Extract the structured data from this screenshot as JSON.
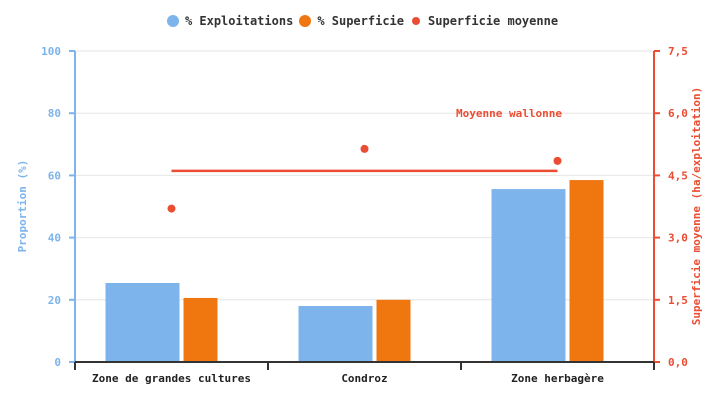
{
  "legend": [
    {
      "label": "% Exploitations",
      "color": "#7db4ec",
      "shape": "circle-large"
    },
    {
      "label": "% Superficie",
      "color": "#f0760f",
      "shape": "circle-large"
    },
    {
      "label": "Superficie moyenne",
      "color": "#eb4d32",
      "shape": "circle-small"
    }
  ],
  "annotation": {
    "label": "Moyenne wallonne",
    "color": "#eb4d32"
  },
  "chart_data": {
    "type": "bar",
    "title": "",
    "categories": [
      "Zone de grandes cultures",
      "Condroz",
      "Zone herbagère"
    ],
    "series": [
      {
        "name": "% Exploitations",
        "axis": "left",
        "type": "bar",
        "color": "#7db4ec",
        "values": [
          25.4,
          18.0,
          55.6
        ]
      },
      {
        "name": "% Superficie",
        "axis": "left",
        "type": "bar",
        "color": "#f0760f",
        "values": [
          20.6,
          20.0,
          58.5
        ]
      },
      {
        "name": "Superficie moyenne",
        "axis": "right",
        "type": "scatter",
        "color": "#eb4d32",
        "values": [
          3.7,
          5.14,
          4.85
        ]
      }
    ],
    "reference_line": {
      "label": "Moyenne wallonne",
      "axis": "right",
      "value": 4.61,
      "color": "#eb4d32"
    },
    "xlabel": "",
    "ylabel": "Proportion (%)",
    "ylabel_right": "Superficie moyenne (ha/exploitation)",
    "ylim": [
      0,
      100
    ],
    "ylim_right": [
      0,
      7.5
    ],
    "yticks": [
      "0",
      "20",
      "40",
      "60",
      "80",
      "100"
    ],
    "yticks_right": [
      "0,0",
      "1,5",
      "3,0",
      "4,5",
      "6,0",
      "7,5"
    ],
    "grid": true,
    "legend_position": "top"
  }
}
